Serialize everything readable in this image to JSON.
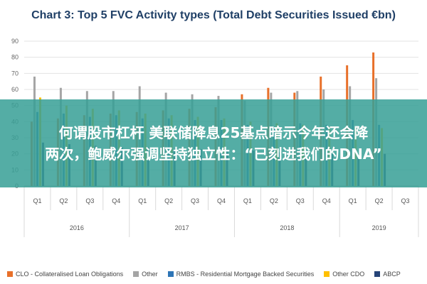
{
  "chart_data": {
    "type": "bar",
    "title": "Chart 3: Top 5 FVC Activity types (Total Debt Securities Issued €bn)",
    "xlabel": "",
    "ylabel": "",
    "ylim": [
      0,
      90
    ],
    "yticks": [
      "0",
      "10",
      "20",
      "30",
      "40",
      "50",
      "60",
      "70",
      "80",
      "90"
    ],
    "grid": true,
    "legend_position": "bottom",
    "categories": [
      "Q1",
      "Q2",
      "Q3",
      "Q4",
      "Q1",
      "Q2",
      "Q3",
      "Q4",
      "Q1",
      "Q2",
      "Q3",
      "Q4",
      "Q1",
      "Q2",
      "Q3"
    ],
    "year_groups": [
      {
        "label": "2016",
        "span": 4
      },
      {
        "label": "2017",
        "span": 4
      },
      {
        "label": "2018",
        "span": 4
      },
      {
        "label": "2019",
        "span": 3
      }
    ],
    "series": [
      {
        "name": "CLO - Collateralised Loan Obligations",
        "color": "#e8702a",
        "values": [
          40,
          42,
          44,
          45,
          46,
          47,
          48,
          49,
          57,
          61,
          58,
          68,
          75,
          83,
          0
        ]
      },
      {
        "name": "Other",
        "color": "#a5a5a5",
        "values": [
          68,
          61,
          59,
          59,
          62,
          58,
          57,
          56,
          53,
          58,
          59,
          60,
          62,
          67,
          0
        ]
      },
      {
        "name": "RMBS - Residential Mortgage Backed Securities",
        "color": "#2e75b6",
        "values": [
          46,
          45,
          43,
          44,
          42,
          42,
          41,
          41,
          38,
          37,
          39,
          38,
          41,
          38,
          0
        ]
      },
      {
        "name": "Other CDO",
        "color": "#ffc000",
        "values": [
          55,
          50,
          48,
          47,
          45,
          44,
          43,
          42,
          40,
          39,
          38,
          37,
          37,
          36,
          0
        ]
      },
      {
        "name": "ABCP",
        "color": "#264478",
        "values": [
          27,
          26,
          25,
          24,
          24,
          23,
          23,
          22,
          22,
          21,
          21,
          20,
          20,
          20,
          0
        ]
      }
    ]
  },
  "overlay": {
    "line1": "何谓股市杠杆 美联储降息25基点暗示今年还会降",
    "line2": "两次，鲍威尔强调坚持独立性：“已刻进我们的DNA”"
  }
}
